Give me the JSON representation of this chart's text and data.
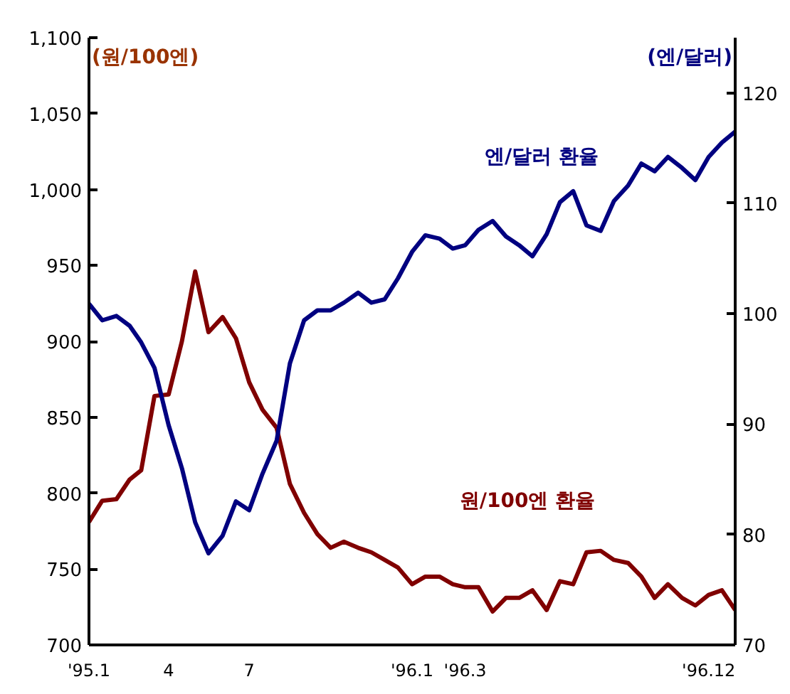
{
  "chart_data": {
    "type": "line",
    "ylabel": "(원/100엔)",
    "y2label": "(엔/달러)",
    "x": [
      "1995-01-01",
      "1995-01-16",
      "1995-02-01",
      "1995-02-16",
      "1995-03-01",
      "1995-03-16",
      "1995-04-01",
      "1995-04-16",
      "1995-05-01",
      "1995-05-16",
      "1995-06-01",
      "1995-06-16",
      "1995-07-01",
      "1995-07-16",
      "1995-08-01",
      "1995-08-16",
      "1995-09-01",
      "1995-09-16",
      "1995-10-01",
      "1995-10-16",
      "1995-11-01",
      "1995-11-16",
      "1995-12-01",
      "1995-12-16",
      "1996-01-01",
      "1996-01-16",
      "1996-02-01",
      "1996-02-16",
      "1996-03-01",
      "1996-03-16",
      "1996-04-01",
      "1996-04-16",
      "1996-05-01",
      "1996-05-16",
      "1996-06-01",
      "1996-06-16",
      "1996-07-01",
      "1996-07-16",
      "1996-08-01",
      "1996-08-16",
      "1996-09-01",
      "1996-09-16",
      "1996-10-01",
      "1996-10-16",
      "1996-11-01",
      "1996-11-16",
      "1996-12-01",
      "1996-12-16",
      "1996-12-31"
    ],
    "series": [
      {
        "name": "원/100엔 환율",
        "color": "#800000",
        "values": [
          781,
          795,
          796,
          809,
          815,
          864,
          865,
          900,
          946,
          906,
          916,
          902,
          873,
          855,
          843,
          806,
          787,
          773,
          764,
          768,
          764,
          761,
          756,
          751,
          740,
          745,
          745,
          740,
          738,
          738,
          722,
          731,
          731,
          736,
          723,
          742,
          740,
          761,
          762,
          756,
          754,
          745,
          731,
          740,
          731,
          726,
          733,
          736,
          723
        ]
      },
      {
        "name": "엔/달러 환율",
        "color": "#000080",
        "axis": "y2",
        "values": [
          100.9,
          99.4,
          99.8,
          98.9,
          97.4,
          95.1,
          89.9,
          86.0,
          81.1,
          78.3,
          79.9,
          83.0,
          82.2,
          85.5,
          88.5,
          95.5,
          99.4,
          100.3,
          100.3,
          101.0,
          101.9,
          101.0,
          101.3,
          103.2,
          105.6,
          107.1,
          106.8,
          105.9,
          106.2,
          107.6,
          108.4,
          107.0,
          106.2,
          105.2,
          107.2,
          110.1,
          111.1,
          108.0,
          107.5,
          110.2,
          111.6,
          113.6,
          112.9,
          114.2,
          113.2,
          112.1,
          114.2,
          115.5,
          116.5
        ]
      }
    ],
    "xlim": [
      "1995-01-01",
      "1996-12-31"
    ],
    "xticks": [
      {
        "value": "1995-01-01",
        "label": "'95.1"
      },
      {
        "value": "1995-04-01",
        "label": "4"
      },
      {
        "value": "1995-07-01",
        "label": "7"
      },
      {
        "value": "1996-01-01",
        "label": "'96.1"
      },
      {
        "value": "1996-03-01",
        "label": "'96.3"
      },
      {
        "value": "1996-12-01",
        "label": "'96.12"
      }
    ],
    "ylim": [
      700,
      1100
    ],
    "yticks": [
      {
        "value": 700,
        "label": "700"
      },
      {
        "value": 750,
        "label": "750"
      },
      {
        "value": 800,
        "label": "800"
      },
      {
        "value": 850,
        "label": "850"
      },
      {
        "value": 900,
        "label": "900"
      },
      {
        "value": 950,
        "label": "950"
      },
      {
        "value": 1000,
        "label": "1,000"
      },
      {
        "value": 1050,
        "label": "1,050"
      },
      {
        "value": 1100,
        "label": "1,100"
      }
    ],
    "y2lim": [
      70,
      125
    ],
    "y2ticks": [
      70,
      80,
      90,
      100,
      110,
      120
    ],
    "grid": false,
    "line_style": "solid",
    "marker": "none"
  }
}
